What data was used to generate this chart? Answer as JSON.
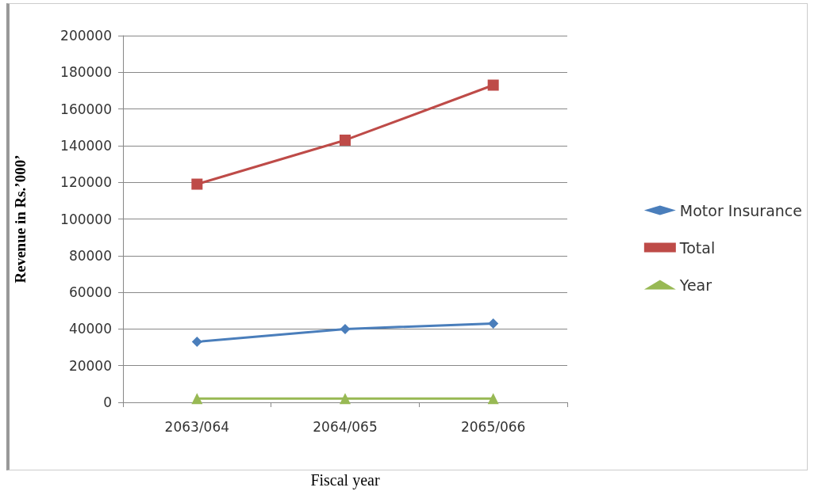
{
  "chart_data": {
    "type": "line",
    "xlabel": "Fiscal year",
    "ylabel": "Revenue in Rs.’000’",
    "categories": [
      "2063/064",
      "2064/065",
      "2065/066"
    ],
    "series": [
      {
        "name": "Motor Insurance",
        "color": "#4a7ebb",
        "marker": "diamond",
        "values": [
          33000,
          40000,
          43000
        ]
      },
      {
        "name": "Total",
        "color": "#be4b48",
        "marker": "square",
        "values": [
          119000,
          143000,
          173000
        ]
      },
      {
        "name": "Year",
        "color": "#98b954",
        "marker": "triangle",
        "values": [
          2000,
          2000,
          2000
        ]
      }
    ],
    "ylim": [
      0,
      200000
    ],
    "yticks": [
      0,
      20000,
      40000,
      60000,
      80000,
      100000,
      120000,
      140000,
      160000,
      180000,
      200000
    ],
    "grid": "y",
    "legend": "right"
  }
}
